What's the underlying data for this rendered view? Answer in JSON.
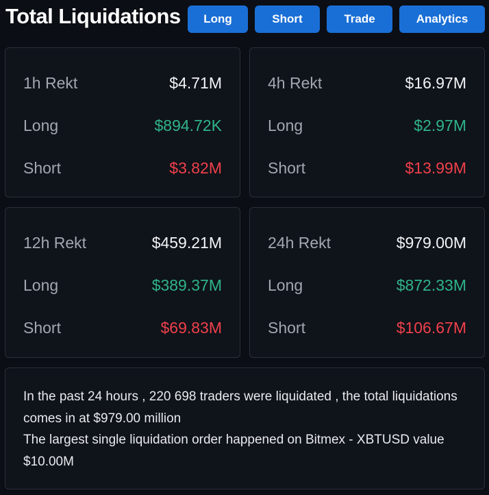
{
  "header": {
    "title": "Total Liquidations",
    "buttons": {
      "long": "Long",
      "short": "Short",
      "trade": "Trade",
      "analytics": "Analytics"
    }
  },
  "cards": {
    "h1": {
      "label": "1h Rekt",
      "total": "$4.71M",
      "long_label": "Long",
      "long_value": "$894.72K",
      "short_label": "Short",
      "short_value": "$3.82M"
    },
    "h4": {
      "label": "4h Rekt",
      "total": "$16.97M",
      "long_label": "Long",
      "long_value": "$2.97M",
      "short_label": "Short",
      "short_value": "$13.99M"
    },
    "h12": {
      "label": "12h Rekt",
      "total": "$459.21M",
      "long_label": "Long",
      "long_value": "$389.37M",
      "short_label": "Short",
      "short_value": "$69.83M"
    },
    "h24": {
      "label": "24h Rekt",
      "total": "$979.00M",
      "long_label": "Long",
      "long_value": "$872.33M",
      "short_label": "Short",
      "short_value": "$106.67M"
    }
  },
  "summary": {
    "line1": "In the past 24 hours , 220 698 traders were liquidated , the total liquidations comes in at $979.00 million",
    "line2": "The largest single liquidation order happened on Bitmex - XBTUSD value $10.00M"
  },
  "colors": {
    "background": "#0b0e14",
    "button": "#1a6fd6",
    "long": "#2fb48a",
    "short": "#f0404a"
  }
}
